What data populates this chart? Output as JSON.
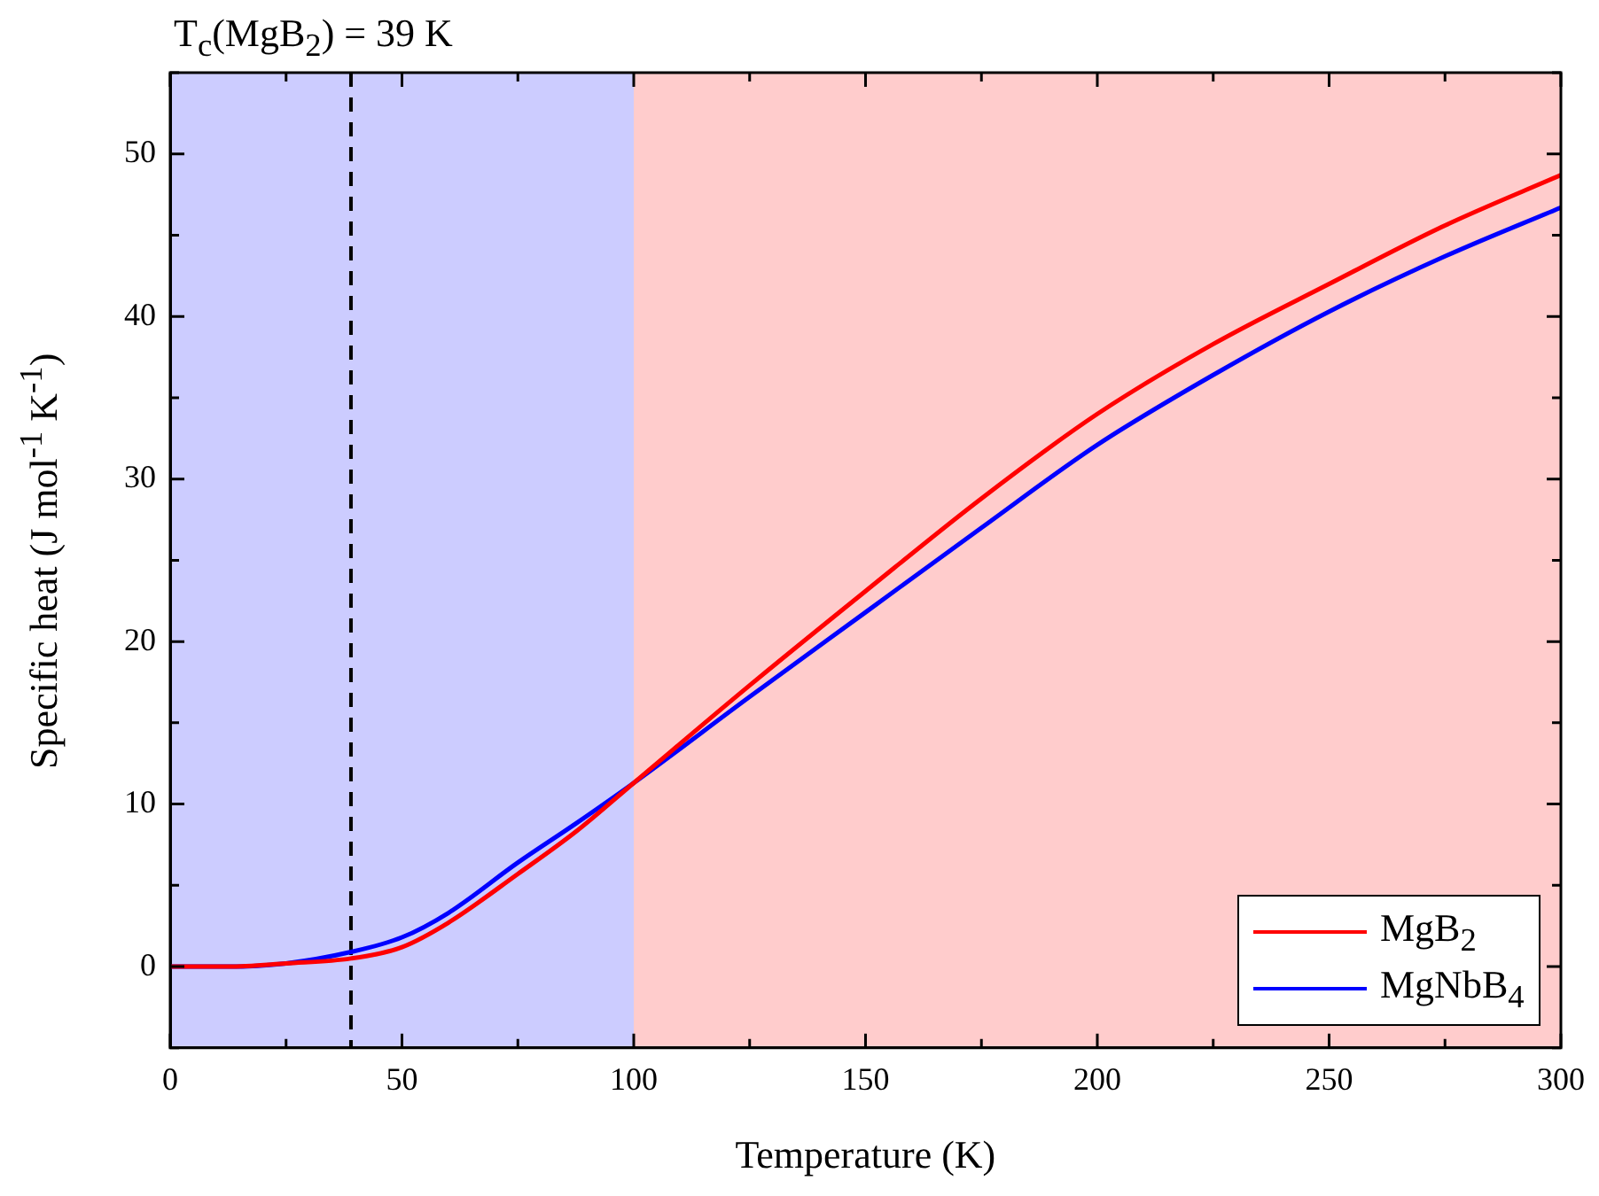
{
  "chart_data": {
    "type": "line",
    "xlabel": "Temperature (K)",
    "ylabel": "Specific heat (J mol$^{-1}$ K$^{-1}$)",
    "x": [
      0,
      12.5,
      25,
      39,
      50,
      60,
      75,
      87.5,
      100,
      125,
      150,
      175,
      200,
      225,
      250,
      275,
      300
    ],
    "series": [
      {
        "name": "MgB$_{2}$",
        "color": "#ff0000",
        "values": [
          0,
          0,
          0.2,
          0.5,
          1.2,
          2.7,
          5.7,
          8.3,
          11.3,
          17.3,
          23.1,
          28.8,
          34.0,
          38.3,
          42.0,
          45.6,
          48.7
        ]
      },
      {
        "name": "MgNbB$_{4}$",
        "color": "#0000ff",
        "values": [
          0,
          0,
          0.2,
          0.9,
          1.8,
          3.3,
          6.4,
          8.8,
          11.3,
          16.6,
          21.8,
          27.0,
          32.1,
          36.4,
          40.3,
          43.7,
          46.7
        ]
      }
    ],
    "xlim": [
      0,
      300
    ],
    "xticks": [
      0,
      {
        "value": 25,
        "label": null
      },
      50,
      {
        "value": 75,
        "label": null
      },
      100,
      {
        "value": 125,
        "label": null
      },
      150,
      {
        "value": 175,
        "label": null
      },
      200,
      {
        "value": 225,
        "label": null
      },
      250,
      {
        "value": 275,
        "label": null
      },
      300
    ],
    "ylim": [
      -5,
      55
    ],
    "yticks": [
      {
        "value": -5,
        "label": null
      },
      0,
      {
        "value": 5,
        "label": null
      },
      10,
      {
        "value": 15,
        "label": null
      },
      20,
      {
        "value": 25,
        "label": null
      },
      30,
      {
        "value": 35,
        "label": null
      },
      40,
      {
        "value": 45,
        "label": null
      },
      50,
      {
        "value": 55,
        "label": null
      }
    ],
    "ref_lines": [
      {
        "axis": "x",
        "value": 39,
        "label": "T$_{c}$(MgB$_{2}$) = 39 K",
        "color": "#000000",
        "line_style": "dashed"
      }
    ],
    "bands": [
      {
        "axis": "x",
        "from": 0,
        "to": 100,
        "color": "#ccccff"
      },
      {
        "axis": "x",
        "from": 100,
        "to": 300,
        "color": "#ffcccc"
      }
    ],
    "grid": false,
    "legend": "bottom right",
    "marker": "none",
    "line_style": "solid"
  }
}
